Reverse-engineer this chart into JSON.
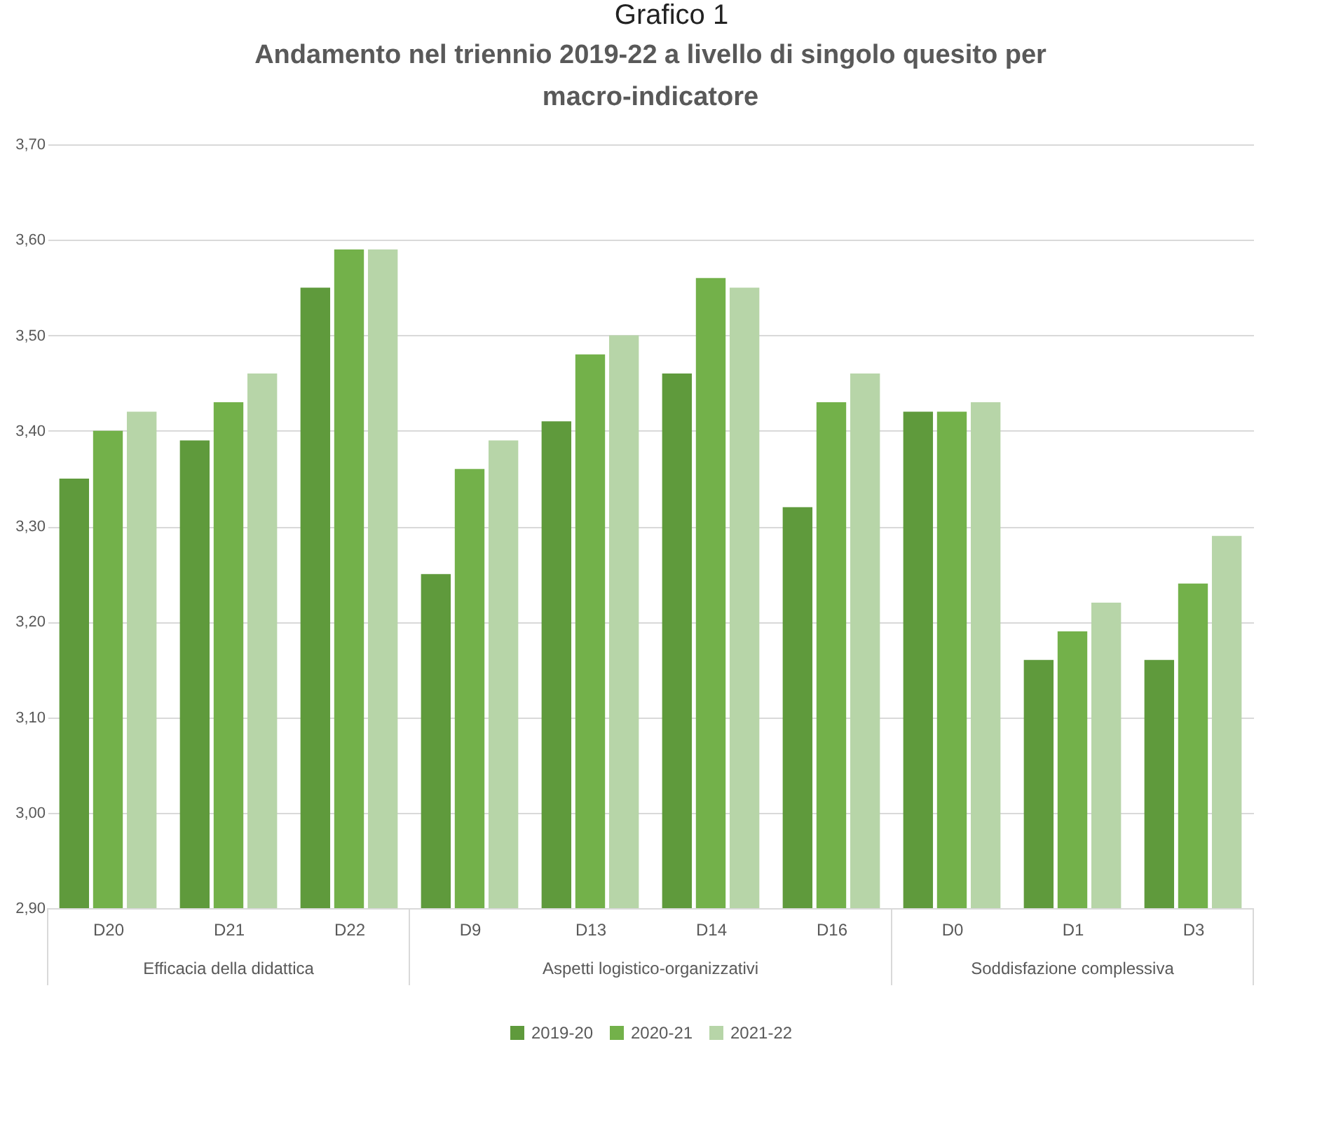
{
  "chart_data": {
    "type": "bar",
    "title": "Andamento nel triennio 2019-22 a livello di singolo quesito per macro-indicatore",
    "categories": [
      "D20",
      "D21",
      "D22",
      "D9",
      "D13",
      "D14",
      "D16",
      "D0",
      "D1",
      "D3"
    ],
    "series": [
      {
        "name": "2019-20",
        "color": "#5f9a3c",
        "values": [
          3.35,
          3.39,
          3.55,
          3.25,
          3.41,
          3.46,
          3.32,
          3.42,
          3.16,
          3.16
        ]
      },
      {
        "name": "2020-21",
        "color": "#73b14a",
        "values": [
          3.4,
          3.43,
          3.59,
          3.36,
          3.48,
          3.56,
          3.43,
          3.42,
          3.19,
          3.24
        ]
      },
      {
        "name": "2021-22",
        "color": "#b7d5a8",
        "values": [
          3.42,
          3.46,
          3.59,
          3.39,
          3.5,
          3.55,
          3.46,
          3.43,
          3.22,
          3.29
        ]
      }
    ],
    "ylim": [
      2.9,
      3.7
    ],
    "yticks": [
      {
        "value": 2.9,
        "label": "2,90"
      },
      {
        "value": 3.0,
        "label": "3,00"
      },
      {
        "value": 3.1,
        "label": "3,10"
      },
      {
        "value": 3.2,
        "label": "3,20"
      },
      {
        "value": 3.3,
        "label": "3,30"
      },
      {
        "value": 3.4,
        "label": "3,40"
      },
      {
        "value": 3.5,
        "label": "3,50"
      },
      {
        "value": 3.6,
        "label": "3,60"
      },
      {
        "value": 3.7,
        "label": "3,70"
      }
    ],
    "grid": "y",
    "legend": "bottom",
    "annotations": [
      "Grafico 1",
      "Efficacia della didattica",
      "Aspetti logistico-organizzativi",
      "Soddisfazione complessiva"
    ]
  }
}
